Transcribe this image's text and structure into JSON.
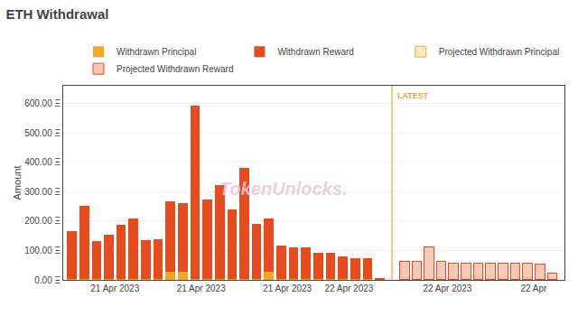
{
  "chart_data": {
    "type": "bar",
    "title": "ETH Withdrawal",
    "y_label": "Amount",
    "stacked": true,
    "grid": true,
    "legend": "upper right",
    "x": [
      0,
      1,
      2,
      3,
      4,
      5,
      6,
      7,
      8,
      9,
      10,
      11,
      12,
      13,
      14,
      15,
      16,
      17,
      18,
      19,
      20,
      21,
      22,
      23,
      24,
      25,
      27,
      28,
      29,
      30,
      31,
      32,
      33,
      34,
      35,
      36,
      37,
      38,
      39
    ],
    "series": [
      {
        "name": "Withdrawn Principal",
        "color": "#f5a623",
        "values": [
          3,
          3,
          3,
          3,
          3,
          3,
          3,
          3,
          28,
          28,
          3,
          3,
          3,
          3,
          3,
          3,
          28,
          3,
          3,
          3,
          3,
          3,
          3,
          3,
          3,
          3,
          null,
          null,
          null,
          null,
          null,
          null,
          null,
          null,
          null,
          null,
          null,
          null,
          null
        ]
      },
      {
        "name": "Withdrawn Reward",
        "color": "#e84c1e",
        "values": [
          162,
          248,
          128,
          152,
          185,
          205,
          132,
          135,
          240,
          232,
          590,
          270,
          318,
          235,
          378,
          188,
          182,
          113,
          108,
          108,
          88,
          88,
          78,
          72,
          70,
          1,
          null,
          null,
          null,
          null,
          null,
          null,
          null,
          null,
          null,
          null,
          null,
          null,
          null
        ]
      },
      {
        "name": "Projected Withdrawn Principal",
        "color": "#fde9c5",
        "values": [
          null,
          null,
          null,
          null,
          null,
          null,
          null,
          null,
          null,
          null,
          null,
          null,
          null,
          null,
          null,
          null,
          null,
          null,
          null,
          null,
          null,
          null,
          null,
          null,
          null,
          null,
          3,
          3,
          3,
          3,
          3,
          3,
          3,
          3,
          3,
          3,
          3,
          3,
          3
        ]
      },
      {
        "name": "Projected Withdrawn Reward",
        "color": "#f8c9b5",
        "values": [
          null,
          null,
          null,
          null,
          null,
          null,
          null,
          null,
          null,
          null,
          null,
          null,
          null,
          null,
          null,
          null,
          null,
          null,
          null,
          null,
          null,
          null,
          null,
          null,
          null,
          null,
          60,
          60,
          110,
          60,
          55,
          55,
          55,
          55,
          55,
          55,
          55,
          50,
          20
        ]
      }
    ],
    "xlim": [
      -0.7,
      40
    ],
    "xticks": [
      {
        "value": 3.5,
        "label": "21 Apr 2023"
      },
      {
        "value": 10.5,
        "label": "21 Apr 2023"
      },
      {
        "value": 17.5,
        "label": "21 Apr 2023"
      },
      {
        "value": 22.5,
        "label": "22 Apr 2023"
      },
      {
        "value": 30.5,
        "label": "22 Apr 2023"
      },
      {
        "value": 37.5,
        "label": "22 Apr"
      }
    ],
    "ylim": [
      0,
      660
    ],
    "yticks": [
      {
        "value": 0,
        "label": "0.00 Ξ"
      },
      {
        "value": 100,
        "label": "100.00 Ξ"
      },
      {
        "value": 200,
        "label": "200.00 Ξ"
      },
      {
        "value": 300,
        "label": "300.00 Ξ"
      },
      {
        "value": 400,
        "label": "400.00 Ξ"
      },
      {
        "value": 500,
        "label": "500.00 Ξ"
      },
      {
        "value": 600,
        "label": "600.00 Ξ"
      }
    ],
    "annotations": [
      {
        "text": "LATEST",
        "x": 26,
        "color": "#f5a623"
      },
      {
        "text": "TokenUnlocks.",
        "color": "#e8c8d8"
      }
    ]
  }
}
